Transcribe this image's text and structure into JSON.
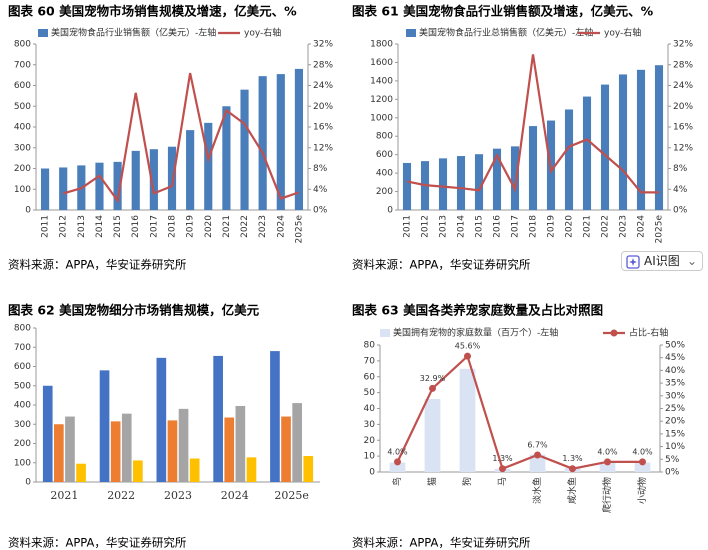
{
  "chart_data": [
    {
      "type": "bar",
      "title": "图表 60  美国宠物市场销售规模及增速，亿美元、%",
      "categories": [
        "2011",
        "2012",
        "2013",
        "2014",
        "2015",
        "2016",
        "2017",
        "2018",
        "2019",
        "2020",
        "2021",
        "2022",
        "2023",
        "2024",
        "2025e"
      ],
      "series": [
        {
          "name": "美国宠物食品行业销售额（亿美元）-左轴",
          "color": "#4a7ebb",
          "values": [
            200,
            205,
            215,
            228,
            232,
            285,
            293,
            305,
            385,
            420,
            500,
            580,
            645,
            655,
            680
          ]
        },
        {
          "name": "yoy-右轴",
          "color": "#c0504d",
          "axis": "y2",
          "values": [
            null,
            3.2,
            4.2,
            6.6,
            1.8,
            22.6,
            3.2,
            4.6,
            26.4,
            9.8,
            19.2,
            16.6,
            11.0,
            2.2,
            3.4
          ]
        }
      ],
      "ylim": [
        0,
        800
      ],
      "yticks": [
        0,
        100,
        200,
        300,
        400,
        500,
        600,
        700,
        800
      ],
      "y2lim": [
        0,
        32
      ],
      "y2ticks": [
        {
          "value": 0,
          "label": "0%"
        },
        {
          "value": 4,
          "label": "4%"
        },
        {
          "value": 8,
          "label": "8%"
        },
        {
          "value": 12,
          "label": "12%"
        },
        {
          "value": 16,
          "label": "16%"
        },
        {
          "value": 20,
          "label": "20%"
        },
        {
          "value": 24,
          "label": "24%"
        },
        {
          "value": 28,
          "label": "28%"
        },
        {
          "value": 32,
          "label": "32%"
        }
      ],
      "source": "资料来源：APPA，华安证券研究所"
    },
    {
      "type": "bar",
      "title": "图表 61  美国宠物食品行业销售额及增速，亿美元、%",
      "categories": [
        "2011",
        "2012",
        "2013",
        "2014",
        "2015",
        "2016",
        "2017",
        "2018",
        "2019",
        "2020",
        "2021",
        "2022",
        "2023",
        "2024",
        "2025e"
      ],
      "series": [
        {
          "name": "美国宠物食品行业总销售额（亿美元）-左轴",
          "color": "#4a7ebb",
          "values": [
            510,
            530,
            560,
            585,
            605,
            665,
            690,
            910,
            970,
            1090,
            1230,
            1360,
            1470,
            1520,
            1570
          ]
        },
        {
          "name": "yoy-右轴",
          "color": "#c0504d",
          "axis": "y2",
          "values": [
            5.5,
            4.8,
            4.5,
            4.2,
            3.8,
            10.5,
            4.0,
            30.0,
            7.5,
            12.2,
            13.6,
            10.6,
            7.6,
            3.4,
            3.4
          ]
        }
      ],
      "ylim": [
        0,
        1800
      ],
      "yticks": [
        0,
        200,
        400,
        600,
        800,
        1000,
        1200,
        1400,
        1600,
        1800
      ],
      "y2lim": [
        0,
        32
      ],
      "y2ticks": [
        {
          "value": 0,
          "label": "0%"
        },
        {
          "value": 4,
          "label": "4%"
        },
        {
          "value": 8,
          "label": "8%"
        },
        {
          "value": 12,
          "label": "12%"
        },
        {
          "value": 16,
          "label": "16%"
        },
        {
          "value": 20,
          "label": "20%"
        },
        {
          "value": 24,
          "label": "24%"
        },
        {
          "value": 28,
          "label": "28%"
        },
        {
          "value": 32,
          "label": "32%"
        }
      ],
      "source": "资料来源：APPA，华安证券研究所"
    },
    {
      "type": "bar",
      "title": "图表 62  美国宠物细分市场销售规模，亿美元",
      "categories": [
        "2021",
        "2022",
        "2023",
        "2024",
        "2025e"
      ],
      "series": [
        {
          "color": "#4472c4",
          "values": [
            500,
            580,
            645,
            655,
            680
          ]
        },
        {
          "color": "#ed7d31",
          "values": [
            300,
            315,
            320,
            335,
            340
          ]
        },
        {
          "color": "#a5a5a5",
          "values": [
            340,
            355,
            380,
            395,
            410
          ]
        },
        {
          "color": "#ffc000",
          "values": [
            95,
            112,
            122,
            128,
            135
          ]
        }
      ],
      "ylim": [
        0,
        800
      ],
      "yticks": [
        0,
        100,
        200,
        300,
        400,
        500,
        600,
        700,
        800
      ],
      "source": "资料来源：APPA，华安证券研究所"
    },
    {
      "type": "bar",
      "title": "图表 63  美国各类养宠家庭数量及占比对照图",
      "categories": [
        "鸟",
        "猫",
        "狗",
        "马",
        "淡水鱼",
        "咸水鱼",
        "爬行动物",
        "小动物"
      ],
      "series": [
        {
          "name": "美国拥有宠物的家庭数量（百万个）-左轴",
          "color": "#dae3f3",
          "values": [
            6,
            46,
            65,
            2,
            11,
            2.5,
            6,
            6
          ]
        },
        {
          "name": "占比-右轴",
          "color": "#c0504d",
          "axis": "y2",
          "markers": true,
          "values": [
            4.0,
            32.9,
            45.6,
            1.3,
            6.7,
            1.3,
            4.0,
            4.0
          ],
          "value_labels": [
            "4.0%",
            "32.9%",
            "45.6%",
            "1.3%",
            "6.7%",
            "1.3%",
            "4.0%",
            "4.0%"
          ]
        }
      ],
      "ylim": [
        0,
        80
      ],
      "yticks": [
        0,
        10,
        20,
        30,
        40,
        50,
        60,
        70,
        80
      ],
      "y2lim": [
        0,
        50
      ],
      "y2ticks": [
        {
          "value": 0,
          "label": "0%"
        },
        {
          "value": 5,
          "label": "5%"
        },
        {
          "value": 10,
          "label": "10%"
        },
        {
          "value": 15,
          "label": "15%"
        },
        {
          "value": 20,
          "label": "20%"
        },
        {
          "value": 25,
          "label": "25%"
        },
        {
          "value": 30,
          "label": "30%"
        },
        {
          "value": 35,
          "label": "35%"
        },
        {
          "value": 40,
          "label": "40%"
        },
        {
          "value": 45,
          "label": "45%"
        },
        {
          "value": 50,
          "label": "50%"
        }
      ],
      "source": "资料来源：APPA，华安证券研究所"
    }
  ],
  "ai_button": "AI识图"
}
